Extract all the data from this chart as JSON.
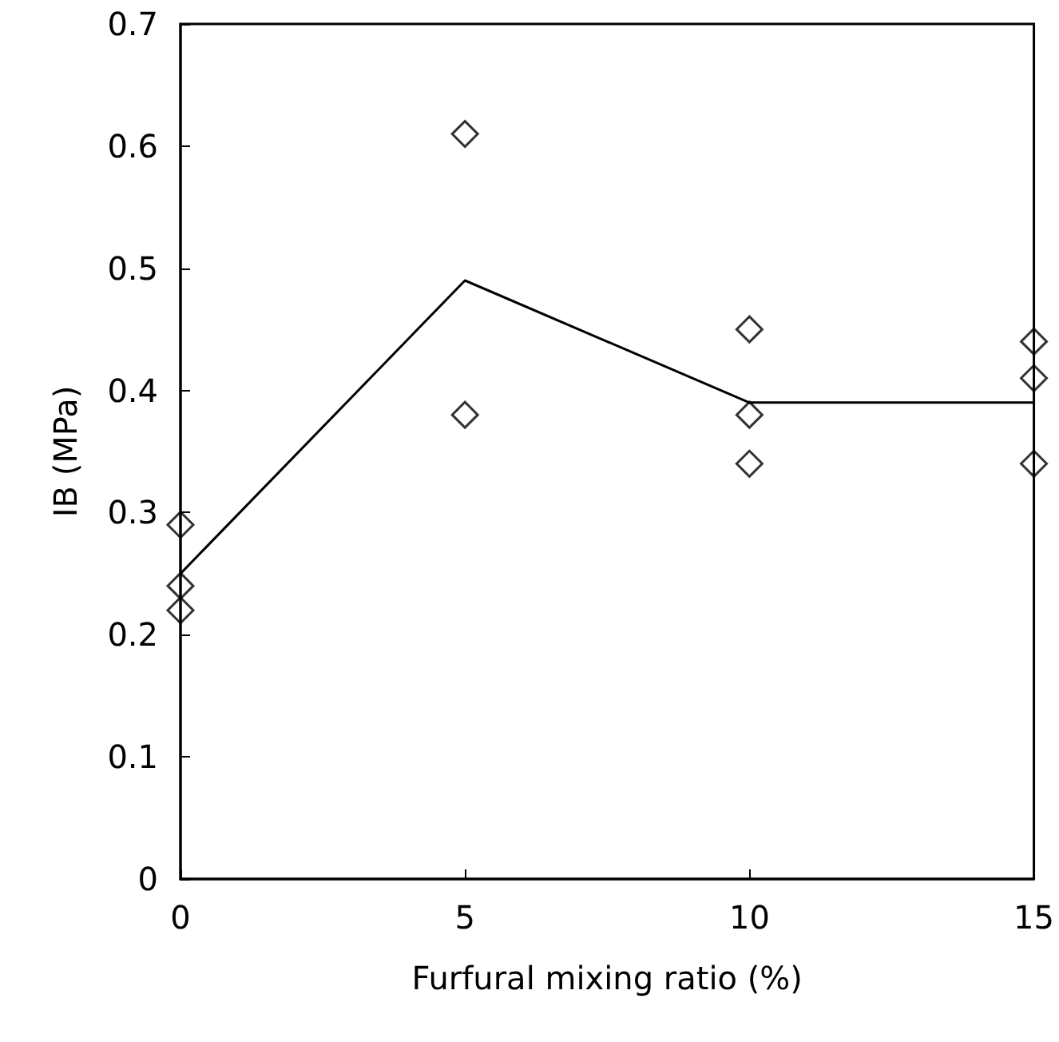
{
  "chart_data": {
    "type": "scatter",
    "xlabel": "Furfural mixing ratio (%)",
    "ylabel": "IB (MPa)",
    "xlim": [
      0,
      15
    ],
    "xticks": [
      0,
      5,
      10,
      15
    ],
    "ylim": [
      0,
      0.7
    ],
    "yticks": [
      0,
      0.1,
      0.2,
      0.3,
      0.4,
      0.5,
      0.6,
      0.7
    ],
    "grid": false,
    "series": [
      {
        "marker": "diamond",
        "color": "#000000",
        "x": [
          0,
          0,
          0,
          5,
          5,
          10,
          10,
          10,
          15,
          15,
          15
        ],
        "values": [
          0.29,
          0.24,
          0.22,
          0.61,
          0.38,
          0.45,
          0.38,
          0.34,
          0.44,
          0.41,
          0.34
        ]
      },
      {
        "type": "line",
        "marker": "none",
        "color": "#000000",
        "x": [
          0,
          5,
          10,
          15
        ],
        "values": [
          0.25,
          0.49,
          0.39,
          0.39
        ]
      }
    ]
  }
}
